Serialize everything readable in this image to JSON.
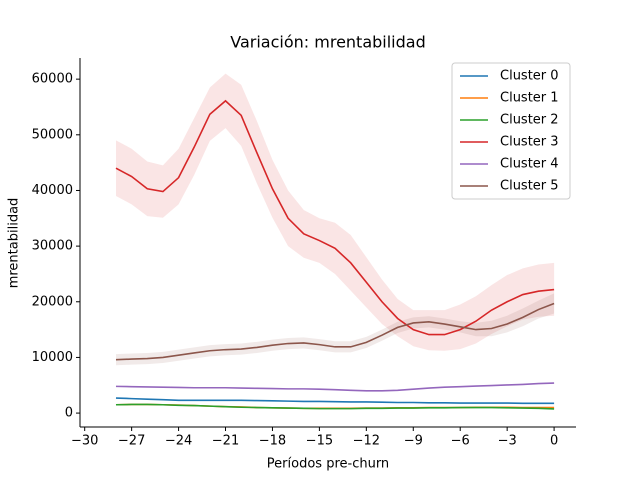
{
  "chart_data": {
    "type": "line",
    "title": "Variación: mrentabilidad",
    "xlabel": "Períodos pre-churn",
    "ylabel": "mrentabilidad",
    "x": [
      -28,
      -27,
      -26,
      -25,
      -24,
      -23,
      -22,
      -21,
      -20,
      -19,
      -18,
      -17,
      -16,
      -15,
      -14,
      -13,
      -12,
      -11,
      -10,
      -9,
      -8,
      -7,
      -6,
      -5,
      -4,
      -3,
      -2,
      -1,
      0
    ],
    "series": [
      {
        "name": "Cluster 0",
        "color": "#1f77b4",
        "values": [
          2700,
          2600,
          2500,
          2400,
          2300,
          2300,
          2300,
          2300,
          2300,
          2250,
          2200,
          2150,
          2100,
          2100,
          2050,
          2000,
          2000,
          1950,
          1900,
          1900,
          1850,
          1850,
          1800,
          1800,
          1800,
          1800,
          1750,
          1750,
          1750
        ]
      },
      {
        "name": "Cluster 1",
        "color": "#ff7f0e",
        "values": [
          1500,
          1550,
          1550,
          1500,
          1450,
          1350,
          1250,
          1150,
          1100,
          1000,
          950,
          900,
          850,
          850,
          850,
          850,
          900,
          900,
          950,
          950,
          1000,
          1000,
          1000,
          1050,
          1050,
          1050,
          1000,
          1000,
          1000
        ]
      },
      {
        "name": "Cluster 2",
        "color": "#2ca02c",
        "values": [
          1500,
          1550,
          1550,
          1500,
          1400,
          1350,
          1250,
          1150,
          1050,
          1000,
          950,
          900,
          850,
          800,
          800,
          800,
          850,
          850,
          900,
          900,
          950,
          950,
          1000,
          1000,
          1000,
          950,
          900,
          850,
          750
        ]
      },
      {
        "name": "Cluster 3",
        "color": "#d62728",
        "values": [
          44000,
          42500,
          40300,
          39800,
          42300,
          47800,
          53700,
          56100,
          53500,
          46800,
          40300,
          35000,
          32200,
          31000,
          29600,
          27000,
          23500,
          20000,
          17000,
          15000,
          14100,
          14100,
          15000,
          16500,
          18500,
          20000,
          21300,
          21900,
          22200
        ],
        "upper": [
          49000,
          47500,
          45200,
          44500,
          47500,
          53000,
          58500,
          61000,
          59000,
          52500,
          45500,
          40000,
          36500,
          35000,
          34200,
          32000,
          28000,
          24000,
          20500,
          18500,
          18500,
          18500,
          19500,
          21000,
          23000,
          24800,
          26000,
          26700,
          27000
        ],
        "lower": [
          39000,
          37500,
          35400,
          35100,
          37500,
          42800,
          48900,
          51200,
          48000,
          41300,
          35100,
          30000,
          27900,
          27000,
          25000,
          22000,
          19000,
          16000,
          13800,
          12000,
          11300,
          11200,
          11500,
          12500,
          14200,
          15600,
          16800,
          17300,
          17500
        ]
      },
      {
        "name": "Cluster 4",
        "color": "#9467bd",
        "values": [
          4800,
          4750,
          4700,
          4650,
          4600,
          4550,
          4550,
          4550,
          4500,
          4450,
          4400,
          4350,
          4350,
          4300,
          4200,
          4100,
          4000,
          4000,
          4100,
          4300,
          4500,
          4650,
          4750,
          4850,
          4950,
          5050,
          5150,
          5300,
          5400
        ]
      },
      {
        "name": "Cluster 5",
        "color": "#8c564b",
        "values": [
          9600,
          9700,
          9800,
          10000,
          10400,
          10800,
          11200,
          11400,
          11500,
          11800,
          12200,
          12500,
          12600,
          12300,
          11900,
          11900,
          12700,
          14000,
          15400,
          16200,
          16400,
          16000,
          15500,
          15000,
          15200,
          16000,
          17200,
          18600,
          19700
        ],
        "upper": [
          10600,
          10700,
          10800,
          11000,
          11400,
          11800,
          12200,
          12400,
          12500,
          12800,
          13200,
          13500,
          13600,
          13300,
          12900,
          12900,
          13700,
          15000,
          16400,
          17200,
          17400,
          17000,
          16500,
          16200,
          16600,
          17500,
          18800,
          20200,
          21500
        ],
        "lower": [
          8600,
          8700,
          8800,
          9000,
          9400,
          9800,
          10200,
          10400,
          10500,
          10800,
          11200,
          11500,
          11600,
          11300,
          10900,
          10900,
          11700,
          13000,
          14400,
          15200,
          15400,
          15000,
          14500,
          13800,
          13800,
          14500,
          15600,
          17000,
          17900
        ]
      }
    ],
    "xlim": [
      -30.3,
      1.4
    ],
    "ylim": [
      -2500,
      63800
    ],
    "xticks": [
      {
        "value": -30,
        "label": "−30"
      },
      {
        "value": -27,
        "label": "−27"
      },
      {
        "value": -24,
        "label": "−24"
      },
      {
        "value": -21,
        "label": "−21"
      },
      {
        "value": -18,
        "label": "−18"
      },
      {
        "value": -15,
        "label": "−15"
      },
      {
        "value": -12,
        "label": "−12"
      },
      {
        "value": -9,
        "label": "−9"
      },
      {
        "value": -6,
        "label": "−6"
      },
      {
        "value": -3,
        "label": "−3"
      },
      0
    ],
    "yticks": [
      0,
      10000,
      20000,
      30000,
      40000,
      50000,
      60000
    ],
    "legend": "upper right"
  }
}
